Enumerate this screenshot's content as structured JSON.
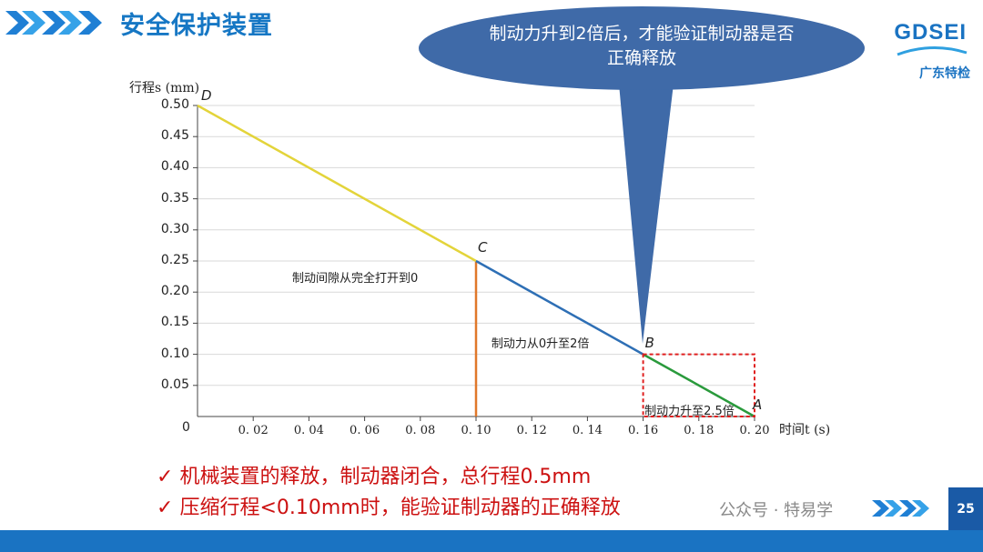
{
  "header": {
    "title": "安全保护装置",
    "logo_text": "GDSEI",
    "logo_sub": "广东特检"
  },
  "callout": {
    "text": "制动力升到2倍后，才能验证制动器是否正确释放"
  },
  "chart_data": {
    "type": "line",
    "ylabel": "行程s (mm)",
    "xlabel": "时间t (s)",
    "xlim": [
      0,
      0.2
    ],
    "ylim": [
      0,
      0.5
    ],
    "x_ticks": [
      "0. 02",
      "0. 04",
      "0. 06",
      "0. 08",
      "0. 10",
      "0. 12",
      "0. 14",
      "0. 16",
      "0. 18",
      "0. 20"
    ],
    "x_tick_values": [
      0.02,
      0.04,
      0.06,
      0.08,
      0.1,
      0.12,
      0.14,
      0.16,
      0.18,
      0.2
    ],
    "y_ticks": [
      "0.05",
      "0.10",
      "0.15",
      "0.20",
      "0.25",
      "0.30",
      "0.35",
      "0.40",
      "0.45",
      "0.50"
    ],
    "y_tick_values": [
      0.05,
      0.1,
      0.15,
      0.2,
      0.25,
      0.3,
      0.35,
      0.4,
      0.45,
      0.5
    ],
    "origin_label": "0",
    "grid": true,
    "segments": [
      {
        "from": "D",
        "to": "C",
        "x": [
          0,
          0.1
        ],
        "y": [
          0.5,
          0.25
        ],
        "color": "#e3d43a"
      },
      {
        "from": "C",
        "to": "B",
        "x": [
          0.1,
          0.16
        ],
        "y": [
          0.25,
          0.1
        ],
        "color": "#2e6fb5"
      },
      {
        "from": "B",
        "to": "A",
        "x": [
          0.16,
          0.2
        ],
        "y": [
          0.1,
          0.0
        ],
        "color": "#2a9a3c"
      }
    ],
    "vertical_line": {
      "x": 0.1,
      "y": [
        0,
        0.25
      ],
      "color": "#e0782a"
    },
    "highlight_box": {
      "x": [
        0.16,
        0.2
      ],
      "y": [
        0,
        0.1
      ],
      "color": "#e02020"
    },
    "points": [
      {
        "label": "D",
        "x": 0,
        "y": 0.5
      },
      {
        "label": "C",
        "x": 0.1,
        "y": 0.25
      },
      {
        "label": "B",
        "x": 0.16,
        "y": 0.1
      },
      {
        "label": "A",
        "x": 0.2,
        "y": 0.0
      }
    ],
    "annotations": [
      {
        "text": "制动间隙从完全打开到0",
        "x": 0.034,
        "y": 0.225
      },
      {
        "text": "制动力从0升至2倍",
        "x": 0.1055,
        "y": 0.12
      },
      {
        "text": "制动力升至2.5倍",
        "x": 0.1605,
        "y": 0.012
      }
    ]
  },
  "bullets": [
    {
      "mark": "✓",
      "text": "机械装置的释放，制动器闭合，总行程0.5mm"
    },
    {
      "mark": "✓",
      "text": "压缩行程<0.10mm时，能验证制动器的正确释放"
    }
  ],
  "footer": {
    "page_number": "25",
    "watermark": "公众号 · 特易学"
  },
  "colors": {
    "title_blue": "#1677c4",
    "callout_fill": "#3f6aa8",
    "bullet_red": "#cc1111"
  }
}
